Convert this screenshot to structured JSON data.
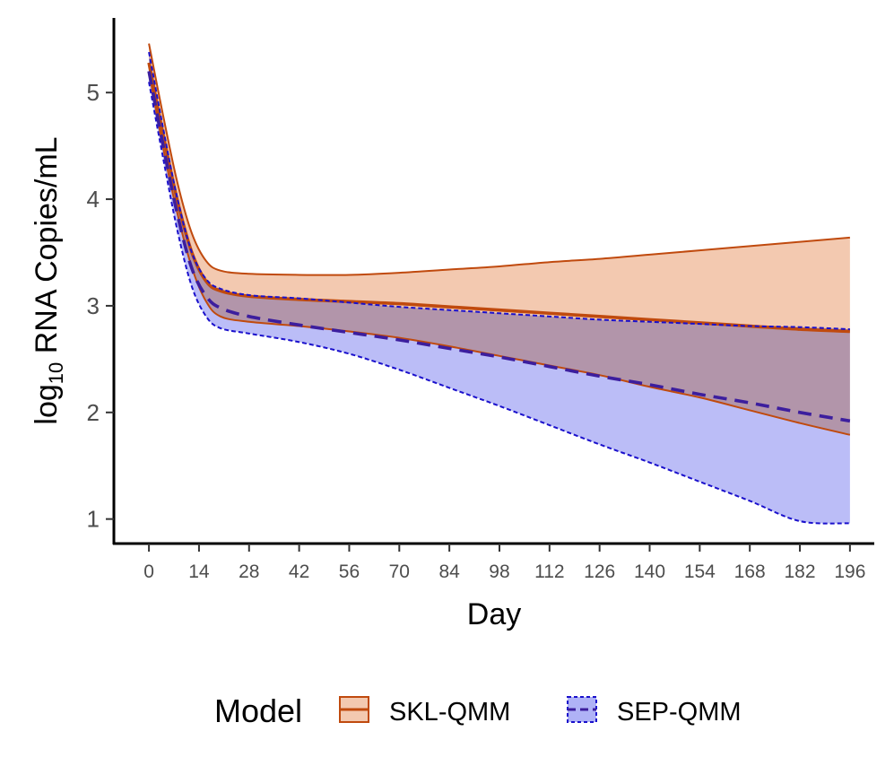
{
  "chart_data": {
    "type": "line",
    "title": "",
    "xlabel": "Day",
    "ylabel_base": "log",
    "ylabel_sub": "10",
    "ylabel_rest": " RNA Copies/mL",
    "xlim": [
      -9.8,
      202.8
    ],
    "ylim": [
      0.77,
      5.7
    ],
    "x_ticks": [
      0,
      14,
      28,
      42,
      56,
      70,
      84,
      98,
      112,
      126,
      140,
      154,
      168,
      182,
      196
    ],
    "y_ticks": [
      1,
      2,
      3,
      4,
      5
    ],
    "legend_title": "Model",
    "legend_position": "bottom",
    "series": [
      {
        "name": "SKL-QMM",
        "color": "#C04A0E",
        "fill": "#F3C9B0",
        "dash": "solid",
        "x": [
          0,
          4,
          8,
          12,
          16,
          20,
          28,
          42,
          56,
          70,
          84,
          98,
          112,
          126,
          140,
          154,
          168,
          182,
          196
        ],
        "mean": [
          5.28,
          4.6,
          3.98,
          3.5,
          3.23,
          3.14,
          3.09,
          3.06,
          3.04,
          3.02,
          2.99,
          2.96,
          2.93,
          2.9,
          2.87,
          2.84,
          2.81,
          2.78,
          2.76
        ],
        "upper": [
          5.46,
          4.78,
          4.15,
          3.68,
          3.42,
          3.33,
          3.3,
          3.29,
          3.29,
          3.31,
          3.34,
          3.37,
          3.41,
          3.44,
          3.48,
          3.52,
          3.56,
          3.6,
          3.64
        ],
        "lower": [
          5.2,
          4.48,
          3.86,
          3.36,
          3.04,
          2.9,
          2.85,
          2.81,
          2.76,
          2.7,
          2.62,
          2.53,
          2.44,
          2.35,
          2.24,
          2.14,
          2.02,
          1.9,
          1.79
        ]
      },
      {
        "name": "SEP-QMM",
        "color": "#1A10CC",
        "fill": "#AFB2F6",
        "mean_color": "#3C1E9E",
        "dash": "dashed",
        "x": [
          0,
          4,
          8,
          12,
          16,
          20,
          28,
          42,
          56,
          70,
          84,
          98,
          112,
          126,
          140,
          154,
          168,
          182,
          196
        ],
        "mean": [
          5.2,
          4.5,
          3.85,
          3.35,
          3.09,
          2.98,
          2.9,
          2.82,
          2.75,
          2.68,
          2.6,
          2.52,
          2.43,
          2.34,
          2.26,
          2.17,
          2.09,
          2.0,
          1.92
        ],
        "upper": [
          5.38,
          4.66,
          4.0,
          3.5,
          3.25,
          3.16,
          3.1,
          3.07,
          3.03,
          2.99,
          2.96,
          2.93,
          2.9,
          2.87,
          2.85,
          2.83,
          2.81,
          2.8,
          2.78
        ],
        "lower": [
          5.1,
          4.38,
          3.7,
          3.18,
          2.9,
          2.79,
          2.74,
          2.66,
          2.55,
          2.4,
          2.23,
          2.06,
          1.88,
          1.7,
          1.53,
          1.35,
          1.17,
          0.98,
          0.96
        ]
      }
    ]
  }
}
